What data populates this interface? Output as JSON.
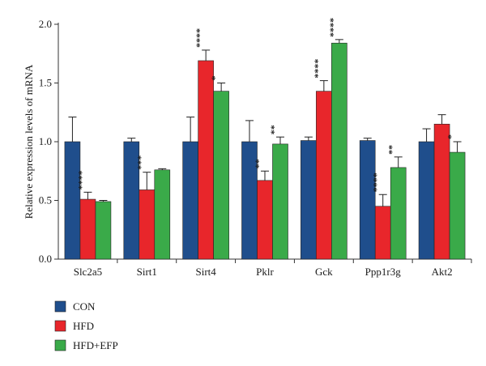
{
  "chart_data": {
    "type": "bar",
    "title": "",
    "xlabel": "",
    "ylabel": "Relative expression levels of mRNA",
    "ylim": [
      0,
      2.0
    ],
    "yticks": [
      "0.0",
      "0.5",
      "1.0",
      "1.5",
      "2.0"
    ],
    "grid": false,
    "legend_position": "bottom-left",
    "categories": [
      "Slc2a5",
      "Sirt1",
      "Sirt4",
      "Pklr",
      "Gck",
      "Ppp1r3g",
      "Akt2"
    ],
    "series": [
      {
        "name": "CON",
        "color": "#1f4e8c",
        "values": [
          1.0,
          1.0,
          1.0,
          1.0,
          1.01,
          1.01,
          1.0
        ],
        "errors": [
          0.21,
          0.03,
          0.21,
          0.18,
          0.03,
          0.02,
          0.11
        ],
        "significance": [
          "",
          "",
          "",
          "",
          "",
          "",
          ""
        ]
      },
      {
        "name": "HFD",
        "color": "#e8262b",
        "values": [
          0.51,
          0.59,
          1.69,
          0.67,
          1.43,
          0.45,
          1.15
        ],
        "errors": [
          0.06,
          0.15,
          0.09,
          0.08,
          0.09,
          0.1,
          0.08
        ],
        "significance": [
          "****",
          "***",
          "****",
          "**",
          "****",
          "****",
          ""
        ]
      },
      {
        "name": "HFD+EFP",
        "color": "#3aaa49",
        "values": [
          0.49,
          0.76,
          1.43,
          0.98,
          1.84,
          0.78,
          0.91
        ],
        "errors": [
          0.01,
          0.01,
          0.07,
          0.06,
          0.03,
          0.09,
          0.09
        ],
        "significance": [
          "",
          "",
          "*",
          "**",
          "****",
          "**",
          "*"
        ]
      }
    ]
  }
}
